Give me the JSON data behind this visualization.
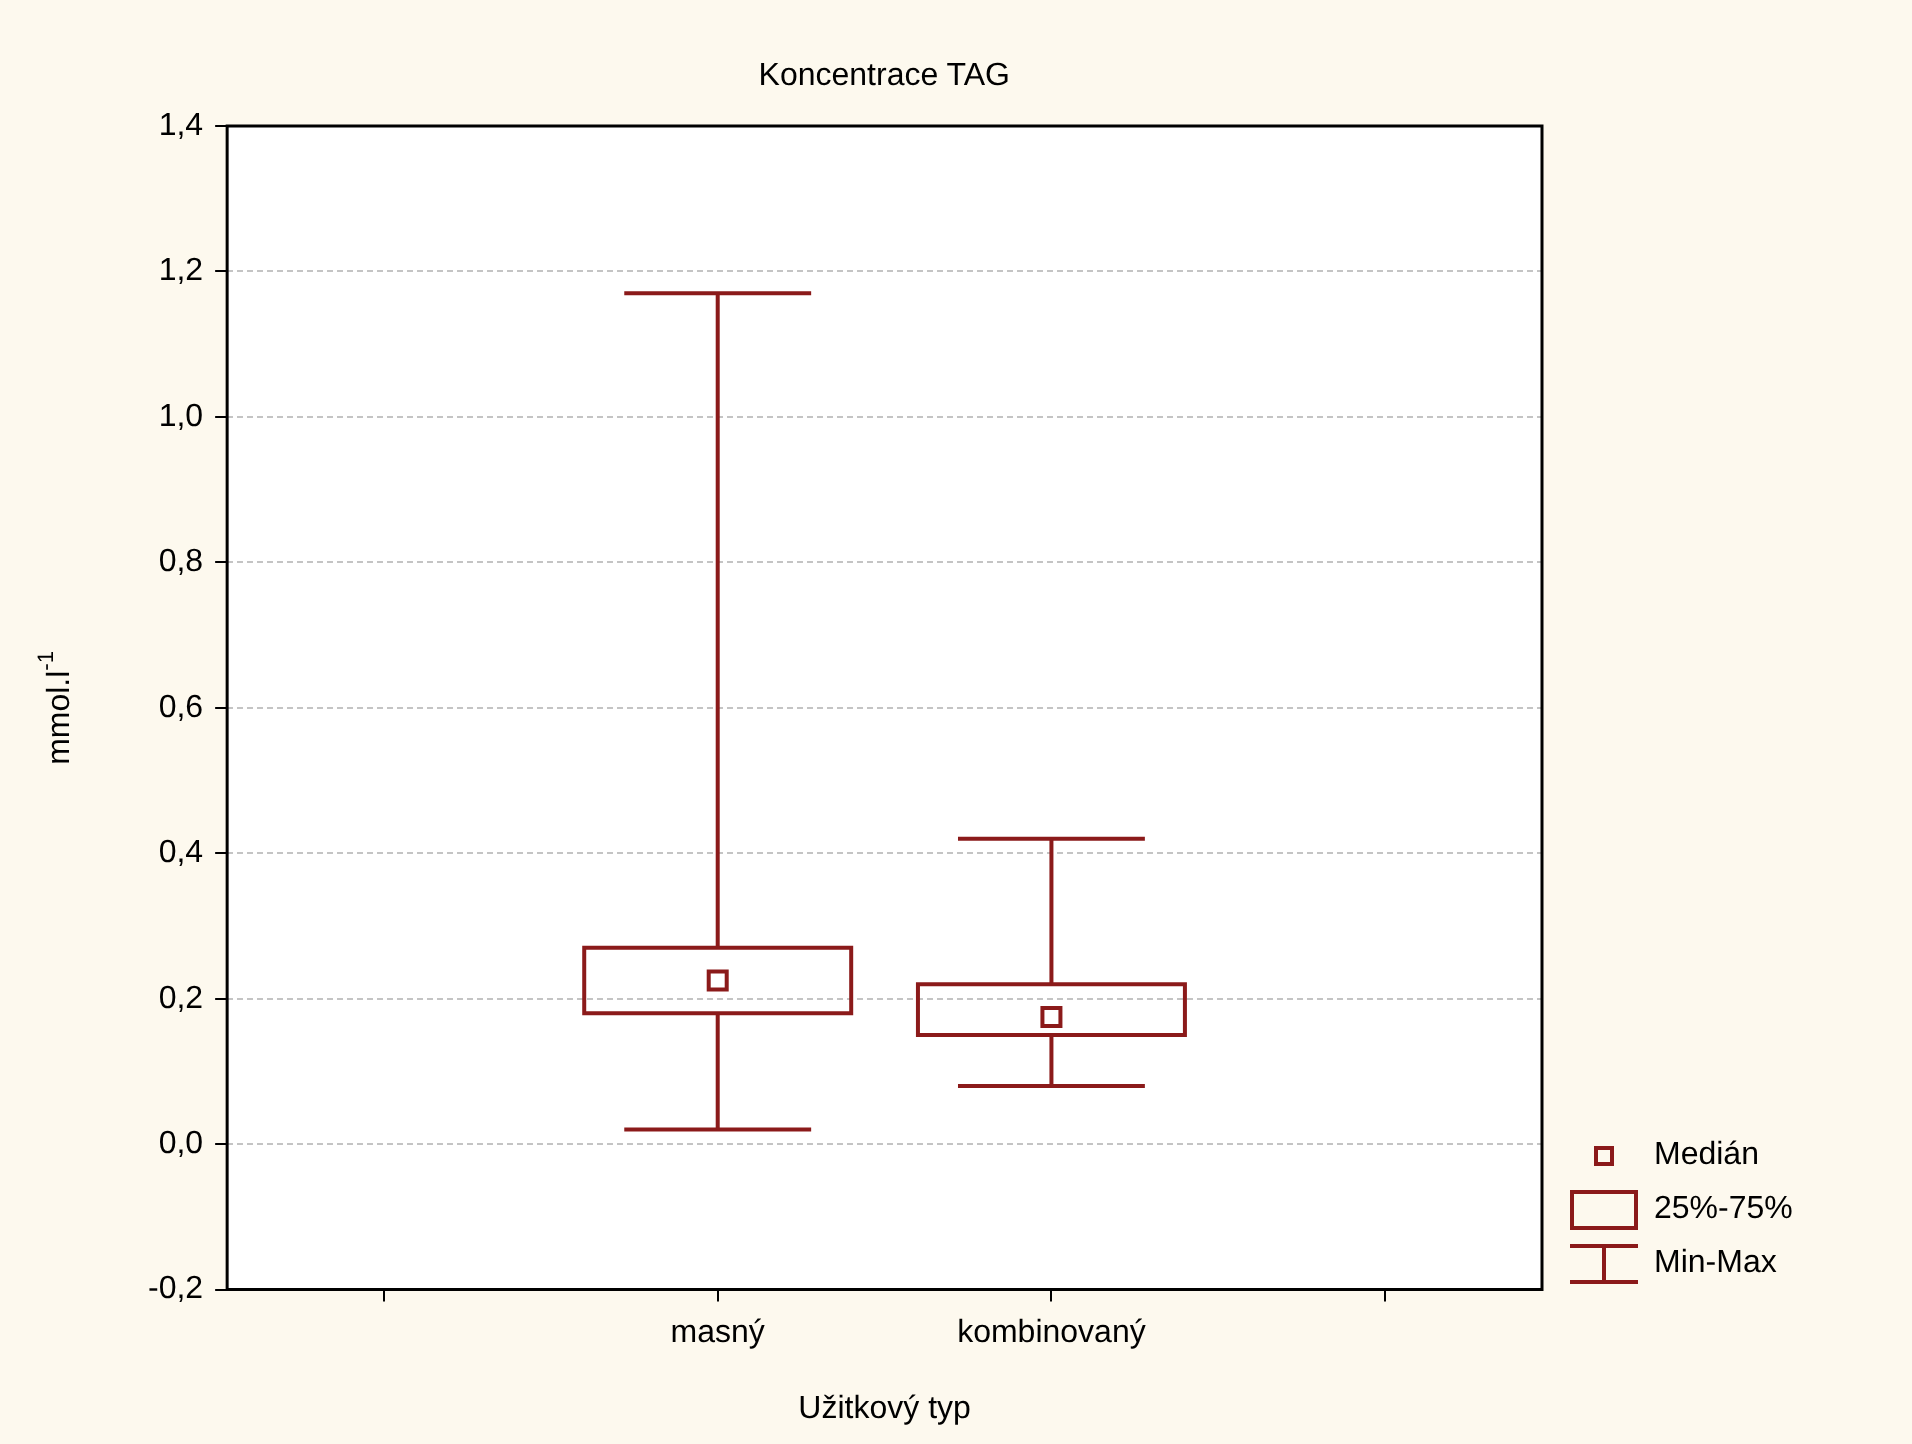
{
  "chart_data": {
    "type": "box",
    "title": "Koncentrace TAG",
    "xlabel": "Užitkový typ",
    "ylabel": "mmol.l$^{-1}$",
    "categories": [
      "masný",
      "kombinovaný"
    ],
    "boxes": [
      {
        "low": 0.02,
        "q1": 0.18,
        "median": 0.225,
        "q3": 0.27,
        "high": 1.17
      },
      {
        "low": 0.08,
        "q1": 0.15,
        "median": 0.175,
        "q3": 0.22,
        "high": 0.42
      }
    ],
    "color": "#8b1a1a",
    "ylim": [
      -0.2,
      1.4
    ],
    "yticks": [
      {
        "value": -0.2,
        "label": "-0,2"
      },
      {
        "value": 0,
        "label": "0,0"
      },
      {
        "value": 0.2,
        "label": "0,2"
      },
      {
        "value": 0.4,
        "label": "0,4"
      },
      {
        "value": 0.6,
        "label": "0,6"
      },
      {
        "value": 0.8,
        "label": "0,8"
      },
      {
        "value": 1.0,
        "label": "1,0"
      },
      {
        "value": 1.2,
        "label": "1,2"
      },
      {
        "value": 1.4,
        "label": "1,4"
      }
    ],
    "grid": "y",
    "annotations": [
      "Medián",
      "25%-75%",
      "Min-Max"
    ]
  }
}
